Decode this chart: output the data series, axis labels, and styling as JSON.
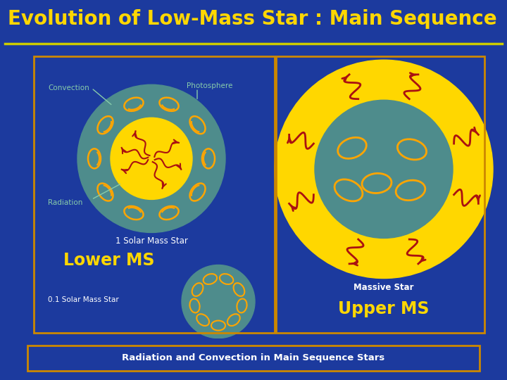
{
  "title": "Evolution of Low-Mass Star : Main Sequence",
  "title_color": "#FFD700",
  "title_bg": "#1C3A9E",
  "title_fontsize": 20,
  "bg_color": "#00061A",
  "outer_bg": "#1C3A9E",
  "panel_border_color": "#CC8800",
  "green_line_color": "#CCCC00",
  "caption_text": "Radiation and Convection in Main Sequence Stars",
  "caption_color": "#FFFFFF",
  "caption_bg": "#00061A",
  "caption_border": "#CC8800",
  "lower_ms_label": "Lower MS",
  "upper_ms_label": "Upper MS",
  "label_color": "#FFD700",
  "solar_1_label": "1 Solar Mass Star",
  "solar_01_label": "0.1 Solar Mass Star",
  "massive_label": "Massive Star",
  "convection_label": "Convection",
  "photosphere_label": "Photosphere",
  "radiation_label": "Radiation",
  "sublabel_color": "#88CCAA",
  "teal_color": "#4E8C8C",
  "yellow_color": "#FFD700",
  "orange_color": "#FFA500",
  "dark_red": "#AA1111",
  "white": "#FFFFFF"
}
